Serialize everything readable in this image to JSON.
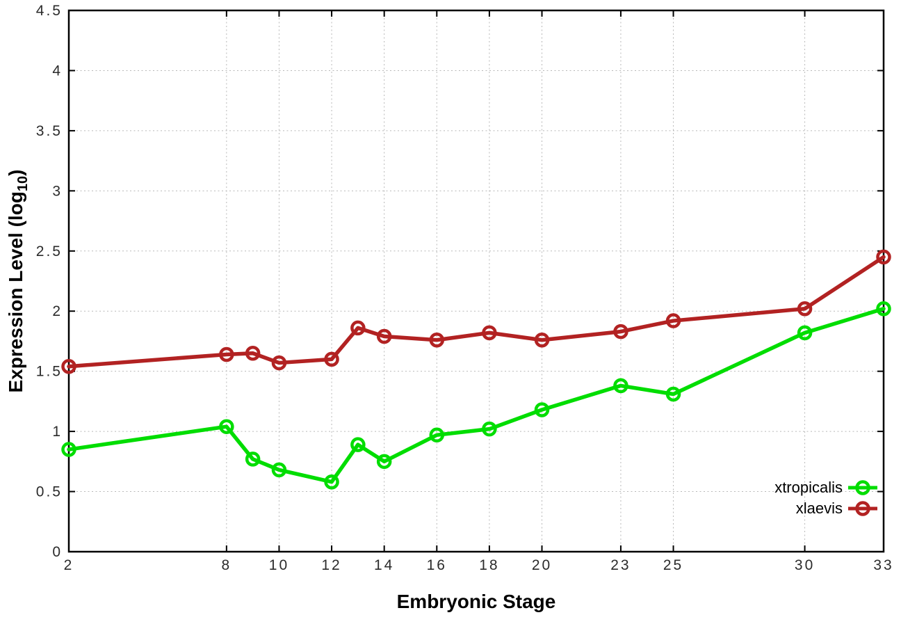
{
  "chart_data": {
    "type": "line",
    "title": "",
    "xlabel": "Embryonic Stage",
    "ylabel": "Expression Level (log10)",
    "ylabel_main": "Expression Level (log",
    "ylabel_sub": "10",
    "ylabel_close": ")",
    "xlim": [
      2,
      33
    ],
    "ylim": [
      0,
      4.5
    ],
    "xticks": [
      2,
      8,
      10,
      12,
      14,
      16,
      18,
      20,
      23,
      25,
      30,
      33
    ],
    "yticks": [
      0,
      0.5,
      1,
      1.5,
      2,
      2.5,
      3,
      3.5,
      4,
      4.5
    ],
    "grid": true,
    "grid_style": "dotted",
    "legend_position": "bottom-right-inside",
    "marker": "open-circle",
    "x": [
      2,
      8,
      9,
      10,
      12,
      13,
      14,
      16,
      18,
      20,
      23,
      25,
      30,
      33
    ],
    "series": [
      {
        "name": "xtropicalis",
        "color": "#00dd00",
        "values": [
          0.85,
          1.04,
          0.77,
          0.68,
          0.58,
          0.89,
          0.75,
          0.97,
          1.02,
          1.18,
          1.38,
          1.31,
          1.82,
          2.02
        ]
      },
      {
        "name": "xlaevis",
        "color": "#b22222",
        "values": [
          1.54,
          1.64,
          1.65,
          1.57,
          1.6,
          1.86,
          1.79,
          1.76,
          1.82,
          1.76,
          1.83,
          1.92,
          2.02,
          2.45
        ]
      }
    ]
  },
  "colors": {
    "background": "#ffffff",
    "frame": "#000000",
    "gridline": "#b8b8b8"
  }
}
